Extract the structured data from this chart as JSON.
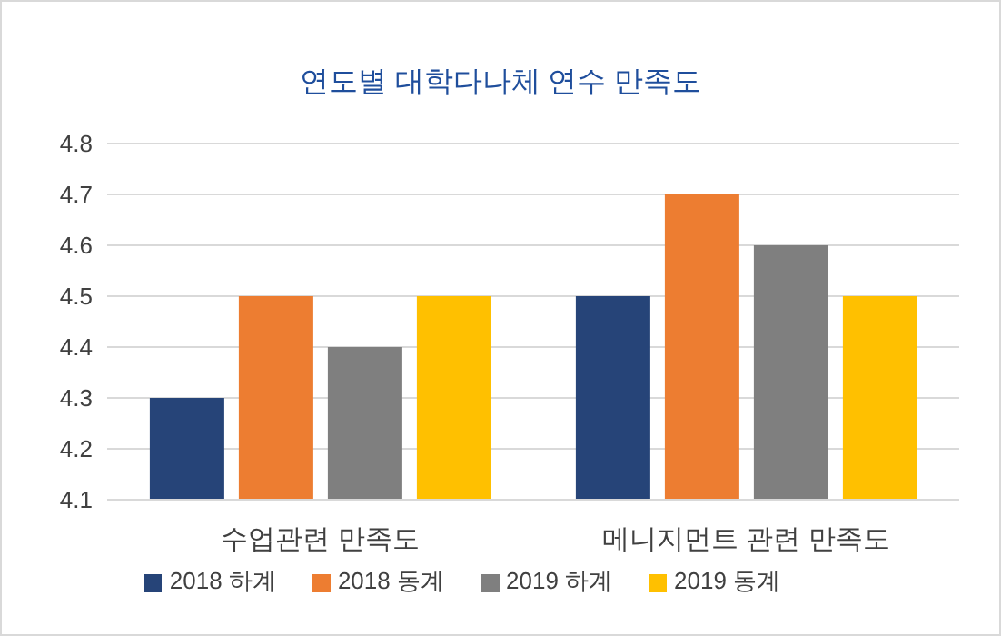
{
  "chart_data": {
    "type": "bar",
    "title": "연도별 대학다나체 연수 만족도",
    "categories": [
      "수업관련 만족도",
      "메니지먼트 관련 만족도"
    ],
    "series": [
      {
        "name": "2018 하계",
        "color": "#264478",
        "values": [
          4.3,
          4.5
        ]
      },
      {
        "name": "2018 동계",
        "color": "#ed7d31",
        "values": [
          4.5,
          4.7
        ]
      },
      {
        "name": "2019 하계",
        "color": "#7f7f7f",
        "values": [
          4.4,
          4.6
        ]
      },
      {
        "name": "2019 동계",
        "color": "#ffc000",
        "values": [
          4.5,
          4.5
        ]
      }
    ],
    "ylim": [
      4.1,
      4.8
    ],
    "yticks": [
      4.1,
      4.2,
      4.3,
      4.4,
      4.5,
      4.6,
      4.7,
      4.8
    ],
    "grid": "y",
    "legend": "bottom"
  }
}
